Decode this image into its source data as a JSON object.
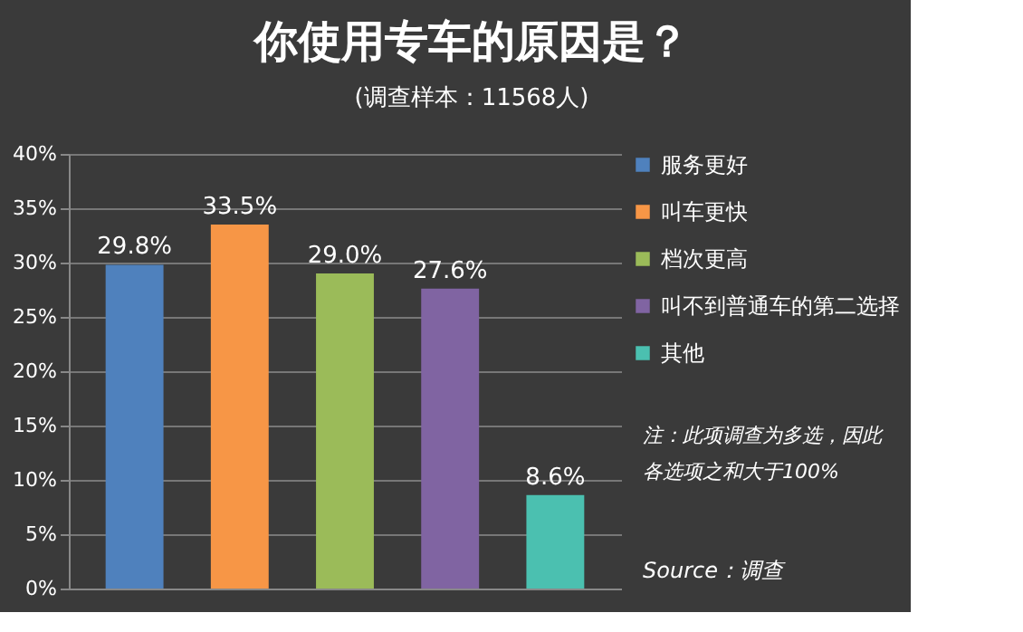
{
  "chart_data": {
    "type": "bar",
    "title": "你使用专车的原因是？",
    "subtitle": "(调查样本：11568人)",
    "categories": [
      null,
      null,
      null,
      null,
      null
    ],
    "series": [
      {
        "name": "服务更好",
        "color": "#4f81bd",
        "values": [
          29.8,
          null,
          null,
          null,
          null
        ],
        "value_labels": [
          "29.8%",
          null,
          null,
          null,
          null
        ]
      },
      {
        "name": "叫车更快",
        "color": "#f79646",
        "values": [
          null,
          33.5,
          null,
          null,
          null
        ],
        "value_labels": [
          null,
          "33.5%",
          null,
          null,
          null
        ]
      },
      {
        "name": "档次更高",
        "color": "#9bbb59",
        "values": [
          null,
          null,
          29.0,
          null,
          null
        ],
        "value_labels": [
          null,
          null,
          "29.0%",
          null,
          null
        ]
      },
      {
        "name": "叫不到普通车的第二选择",
        "color": "#8064a2",
        "values": [
          null,
          null,
          null,
          27.6,
          null
        ],
        "value_labels": [
          null,
          null,
          null,
          "27.6%",
          null
        ]
      },
      {
        "name": "其他",
        "color": "#4bc0b0",
        "values": [
          null,
          null,
          null,
          null,
          8.6
        ],
        "value_labels": [
          null,
          null,
          null,
          null,
          "8.6%"
        ]
      }
    ],
    "ylim": [
      0,
      40
    ],
    "yticks": [
      {
        "value": 0,
        "label": "0%"
      },
      {
        "value": 5,
        "label": "5%"
      },
      {
        "value": 10,
        "label": "10%"
      },
      {
        "value": 15,
        "label": "15%"
      },
      {
        "value": 20,
        "label": "20%"
      },
      {
        "value": 25,
        "label": "25%"
      },
      {
        "value": 30,
        "label": "30%"
      },
      {
        "value": 35,
        "label": "35%"
      },
      {
        "value": 40,
        "label": "40%"
      }
    ],
    "grid": "y",
    "legend": "right",
    "tick_labels": "y",
    "annotations": [
      "注：此项调查为多选，因此各选项之和大于100%",
      "Source：调查"
    ]
  }
}
